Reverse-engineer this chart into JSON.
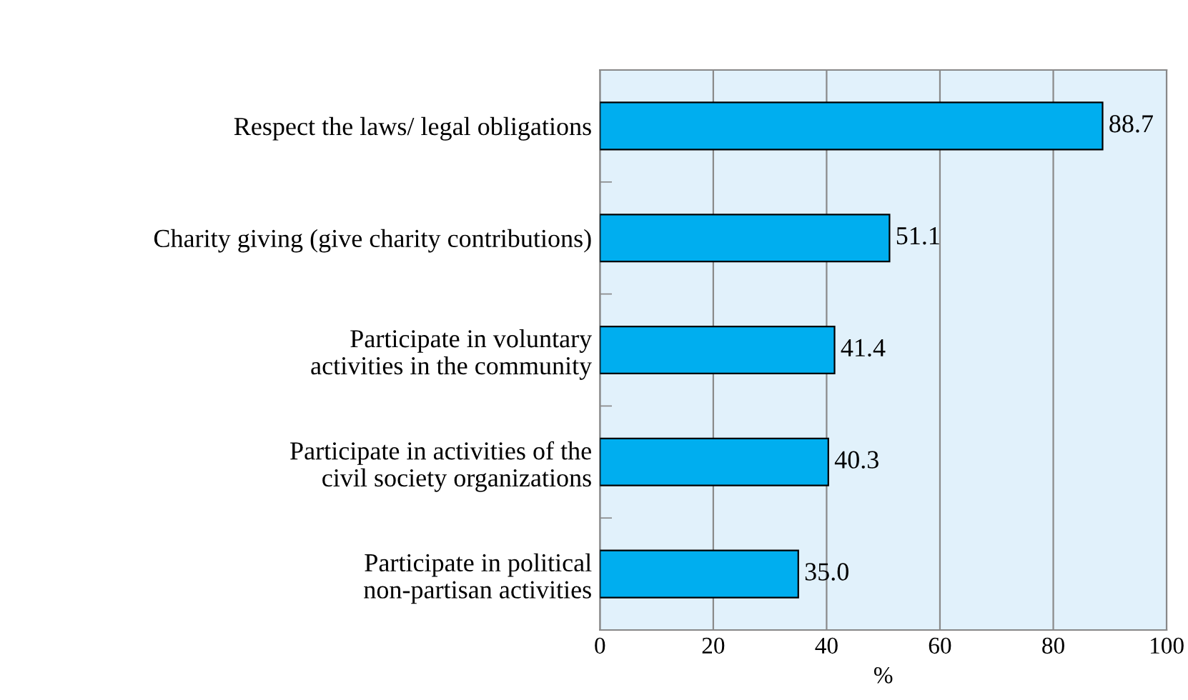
{
  "chart_data": {
    "type": "bar",
    "orientation": "horizontal",
    "categories": [
      "Respect the laws/ legal obligations",
      "Charity giving (give charity contributions)",
      "Participate in voluntary\nactivities in the community",
      "Participate in activities of the\ncivil society organizations",
      "Participate in political\nnon-partisan activities"
    ],
    "values": [
      88.7,
      51.1,
      41.4,
      40.3,
      35.0
    ],
    "value_labels": [
      "88.7",
      "51.1",
      "41.4",
      "40.3",
      "35.0"
    ],
    "color": "#00aeef",
    "xlim": [
      0,
      100
    ],
    "xticks": [
      0,
      20,
      40,
      60,
      80,
      100
    ],
    "xlabel": "%",
    "grid": "x"
  }
}
